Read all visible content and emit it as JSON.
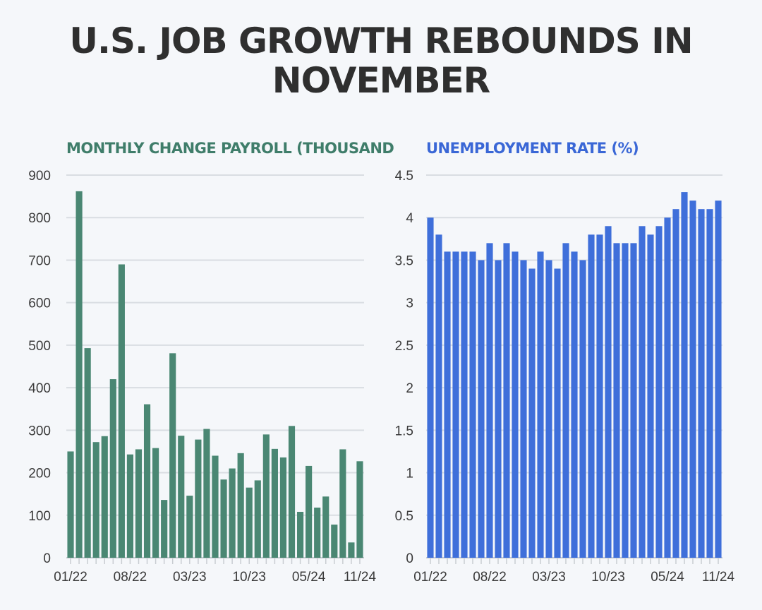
{
  "title": "U.S. JOB GROWTH REBOUNDS IN NOVEMBER",
  "colors": {
    "payroll": "#4a8773",
    "unemployment": "#3f6fda",
    "grid": "#d9dde2",
    "axis": "#3a3a3a",
    "title": "#2f2f2f"
  },
  "chart_data": [
    {
      "type": "bar",
      "title": "MONTHLY CHANGE PAYROLL (THOUSANDS)",
      "xlabel": "",
      "ylabel": "",
      "ylim": [
        0,
        900
      ],
      "yticks": [
        0,
        100,
        200,
        300,
        400,
        500,
        600,
        700,
        800,
        900
      ],
      "grid": true,
      "x_tick_labels": [
        "01/22",
        "08/22",
        "03/23",
        "10/23",
        "05/24",
        "11/24"
      ],
      "x": [
        "01/22",
        "02/22",
        "03/22",
        "04/22",
        "05/22",
        "06/22",
        "07/22",
        "08/22",
        "09/22",
        "10/22",
        "11/22",
        "12/22",
        "01/23",
        "02/23",
        "03/23",
        "04/23",
        "05/23",
        "06/23",
        "07/23",
        "08/23",
        "09/23",
        "10/23",
        "11/23",
        "12/23",
        "01/24",
        "02/24",
        "03/24",
        "04/24",
        "05/24",
        "06/24",
        "07/24",
        "08/24",
        "09/24",
        "10/24",
        "11/24"
      ],
      "values": [
        250,
        862,
        493,
        272,
        286,
        420,
        690,
        243,
        255,
        361,
        258,
        136,
        481,
        287,
        146,
        278,
        303,
        240,
        184,
        210,
        246,
        165,
        182,
        290,
        256,
        236,
        310,
        108,
        216,
        118,
        144,
        78,
        255,
        36,
        227
      ]
    },
    {
      "type": "bar",
      "title": "UNEMPLOYMENT RATE (%)",
      "xlabel": "",
      "ylabel": "",
      "ylim": [
        0,
        4.5
      ],
      "yticks": [
        0,
        0.5,
        1,
        1.5,
        2,
        2.5,
        3,
        3.5,
        4,
        4.5
      ],
      "grid": true,
      "x_tick_labels": [
        "01/22",
        "08/22",
        "03/23",
        "10/23",
        "05/24",
        "11/24"
      ],
      "x": [
        "01/22",
        "02/22",
        "03/22",
        "04/22",
        "05/22",
        "06/22",
        "07/22",
        "08/22",
        "09/22",
        "10/22",
        "11/22",
        "12/22",
        "01/23",
        "02/23",
        "03/23",
        "04/23",
        "05/23",
        "06/23",
        "07/23",
        "08/23",
        "09/23",
        "10/23",
        "11/23",
        "12/23",
        "01/24",
        "02/24",
        "03/24",
        "04/24",
        "05/24",
        "06/24",
        "07/24",
        "08/24",
        "09/24",
        "10/24",
        "11/24"
      ],
      "values": [
        4.0,
        3.8,
        3.6,
        3.6,
        3.6,
        3.6,
        3.5,
        3.7,
        3.5,
        3.7,
        3.6,
        3.5,
        3.4,
        3.6,
        3.5,
        3.4,
        3.7,
        3.6,
        3.5,
        3.8,
        3.8,
        3.9,
        3.7,
        3.7,
        3.7,
        3.9,
        3.8,
        3.9,
        4.0,
        4.1,
        4.3,
        4.2,
        4.1,
        4.1,
        4.2
      ]
    }
  ]
}
